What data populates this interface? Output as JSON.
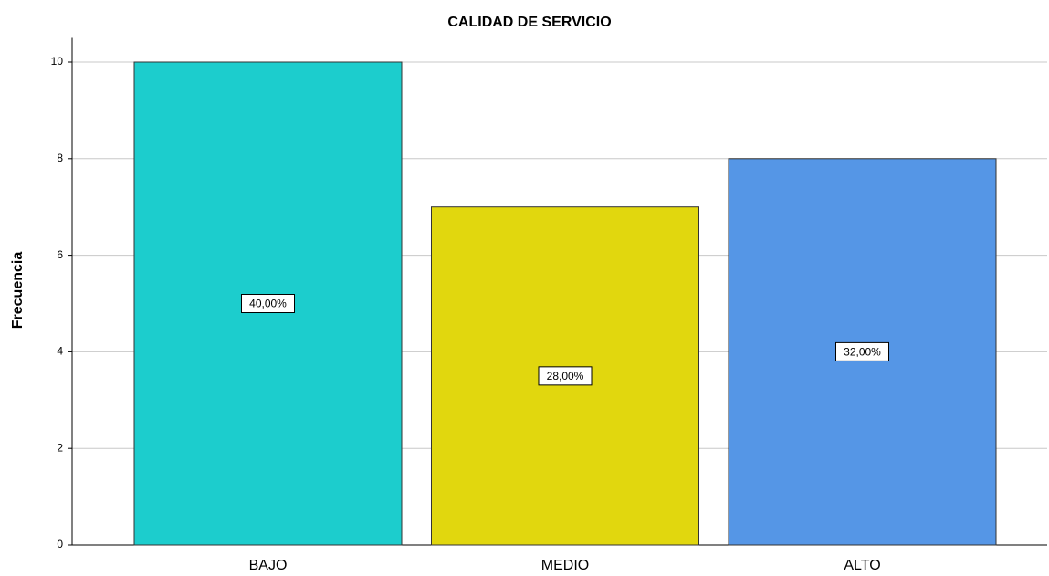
{
  "chart_data": {
    "type": "bar",
    "title": "CALIDAD DE SERVICIO",
    "y_label": "Frecuencia",
    "categories": [
      "BAJO",
      "MEDIO",
      "ALTO"
    ],
    "values": [
      10,
      7,
      8
    ],
    "colors": [
      "#1ccdcd",
      "#e1d70e",
      "#5596e6"
    ],
    "percent_values": [
      40,
      28,
      32
    ],
    "percent_labels": [
      "40,00%",
      "28,00%",
      "32,00%"
    ],
    "ylim": [
      0,
      10.5
    ],
    "yticks": [
      0,
      2,
      4,
      6,
      8,
      10
    ],
    "grid": true
  }
}
